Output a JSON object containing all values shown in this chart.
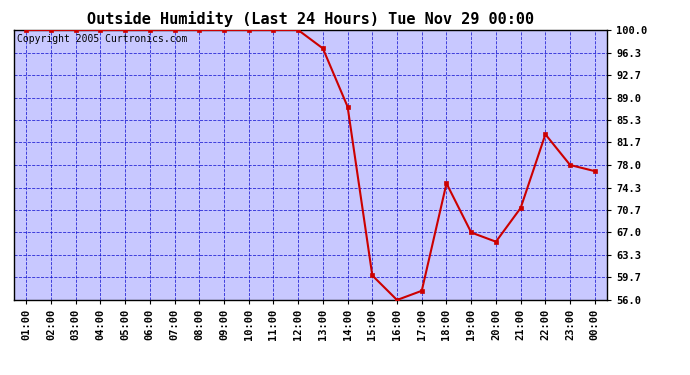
{
  "title": "Outside Humidity (Last 24 Hours) Tue Nov 29 00:00",
  "copyright": "Copyright 2005 Curtronics.com",
  "x_labels": [
    "01:00",
    "02:00",
    "03:00",
    "04:00",
    "05:00",
    "06:00",
    "07:00",
    "08:00",
    "09:00",
    "10:00",
    "11:00",
    "12:00",
    "13:00",
    "14:00",
    "15:00",
    "16:00",
    "17:00",
    "18:00",
    "19:00",
    "20:00",
    "21:00",
    "22:00",
    "23:00",
    "00:00"
  ],
  "x_values": [
    1,
    2,
    3,
    4,
    5,
    6,
    7,
    8,
    9,
    10,
    11,
    12,
    13,
    14,
    15,
    16,
    17,
    18,
    19,
    20,
    21,
    22,
    23,
    24
  ],
  "data_points": [
    [
      1,
      100
    ],
    [
      2,
      100
    ],
    [
      3,
      100
    ],
    [
      4,
      100
    ],
    [
      5,
      100
    ],
    [
      6,
      100
    ],
    [
      7,
      100
    ],
    [
      8,
      100
    ],
    [
      9,
      100
    ],
    [
      10,
      100
    ],
    [
      11,
      100
    ],
    [
      12,
      100
    ],
    [
      13,
      97
    ],
    [
      14,
      87.5
    ],
    [
      15,
      60.0
    ],
    [
      16,
      56.0
    ],
    [
      17,
      57.5
    ],
    [
      18,
      75.0
    ],
    [
      19,
      67.0
    ],
    [
      20,
      65.5
    ],
    [
      21,
      71.0
    ],
    [
      22,
      83.0
    ],
    [
      23,
      78.0
    ],
    [
      24,
      77.0
    ]
  ],
  "line_color": "#cc0000",
  "marker_color": "#cc0000",
  "fig_bg_color": "#ffffff",
  "plot_bg_color": "#c8c8ff",
  "grid_color": "#0000cc",
  "border_color": "#000000",
  "title_color": "#000000",
  "ylim": [
    56.0,
    100.0
  ],
  "yticks": [
    56.0,
    59.7,
    63.3,
    67.0,
    70.7,
    74.3,
    78.0,
    81.7,
    85.3,
    89.0,
    92.7,
    96.3,
    100.0
  ],
  "title_fontsize": 11,
  "tick_fontsize": 7.5,
  "copyright_fontsize": 7
}
